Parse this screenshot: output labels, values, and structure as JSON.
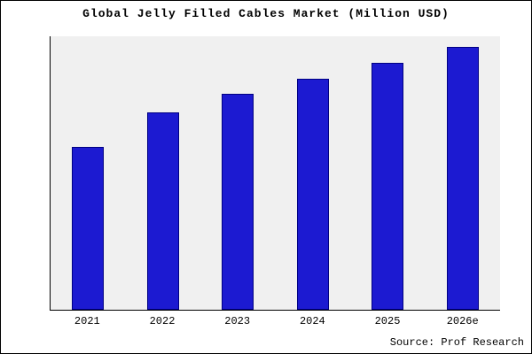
{
  "title": "Global Jelly Filled Cables Market (Million USD)",
  "source": "Source: Prof Research",
  "colors": {
    "bar_fill": "#1c1ad1",
    "bar_border": "#000082",
    "plot_background": "#f0f0f0",
    "frame": "#000000"
  },
  "chart_data": {
    "type": "bar",
    "categories": [
      "2021",
      "2022",
      "2023",
      "2024",
      "2025",
      "2026e"
    ],
    "values": [
      62,
      75,
      82,
      88,
      94,
      100
    ],
    "title": "Global Jelly Filled Cables Market (Million USD)",
    "xlabel": "",
    "ylabel": "",
    "ylim": [
      0,
      104
    ],
    "grid": false,
    "legend": false,
    "annotation": "Source: Prof Research"
  }
}
